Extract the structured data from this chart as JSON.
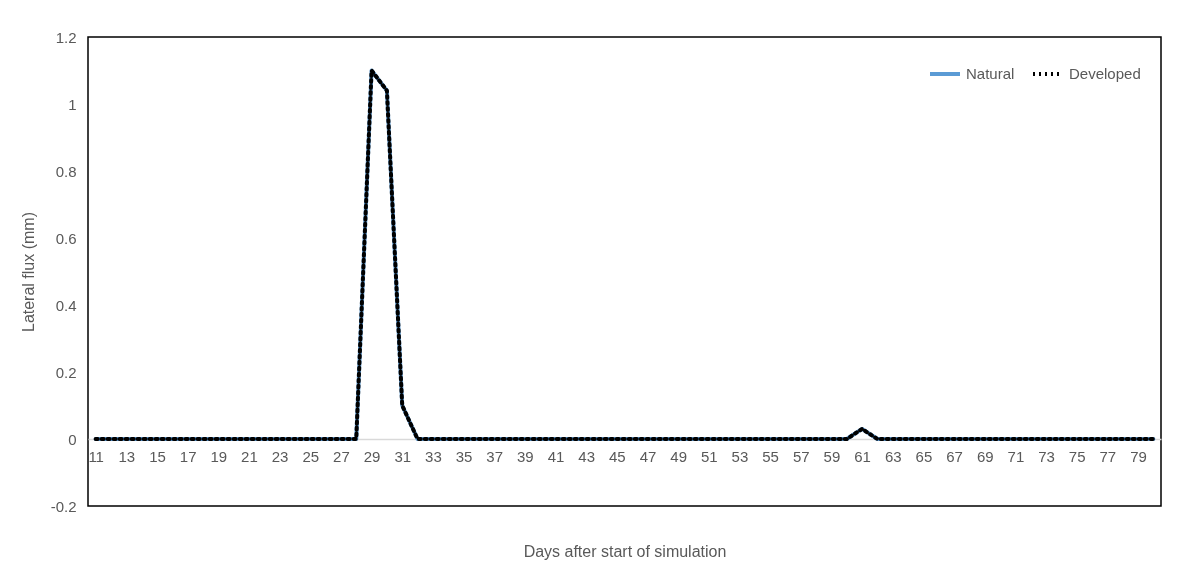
{
  "chart_data": {
    "type": "line",
    "xlabel": "Days after start of simulation",
    "ylabel": "Lateral flux (mm)",
    "categories": [
      "11",
      null,
      "13",
      null,
      "15",
      null,
      "17",
      null,
      "19",
      null,
      "21",
      null,
      "23",
      null,
      "25",
      null,
      "27",
      null,
      "29",
      null,
      "31",
      null,
      "33",
      null,
      "35",
      null,
      "37",
      null,
      "39",
      null,
      "41",
      null,
      "43",
      null,
      "45",
      null,
      "47",
      null,
      "49",
      null,
      "51",
      null,
      "53",
      null,
      "55",
      null,
      "57",
      null,
      "59",
      null,
      "61",
      null,
      "63",
      null,
      "65",
      null,
      "67",
      null,
      "69",
      null,
      "71",
      null,
      "73",
      null,
      "75",
      null,
      "77",
      null,
      "79",
      null
    ],
    "series": [
      {
        "name": "Natural",
        "color": "#5b9bd5",
        "line_style": "solid",
        "values": [
          0,
          0,
          0,
          0,
          0,
          0,
          0,
          0,
          0,
          0,
          0,
          0,
          0,
          0,
          0,
          0,
          0,
          0,
          1.1,
          1.04,
          0.1,
          0,
          0,
          0,
          0,
          0,
          0,
          0,
          0,
          0,
          0,
          0,
          0,
          0,
          0,
          0,
          0,
          0,
          0,
          0,
          0,
          0,
          0,
          0,
          0,
          0,
          0,
          0,
          0,
          0,
          0.03,
          0,
          0,
          0,
          0,
          0,
          0,
          0,
          0,
          0,
          0,
          0,
          0,
          0,
          0,
          0,
          0,
          0,
          0,
          0
        ]
      },
      {
        "name": "Developed",
        "color": "#000000",
        "line_style": "dotted",
        "values": [
          0,
          0,
          0,
          0,
          0,
          0,
          0,
          0,
          0,
          0,
          0,
          0,
          0,
          0,
          0,
          0,
          0,
          0,
          1.1,
          1.04,
          0.1,
          0,
          0,
          0,
          0,
          0,
          0,
          0,
          0,
          0,
          0,
          0,
          0,
          0,
          0,
          0,
          0,
          0,
          0,
          0,
          0,
          0,
          0,
          0,
          0,
          0,
          0,
          0,
          0,
          0,
          0.03,
          0,
          0,
          0,
          0,
          0,
          0,
          0,
          0,
          0,
          0,
          0,
          0,
          0,
          0,
          0,
          0,
          0,
          0,
          0
        ]
      }
    ],
    "ylim": [
      -0.2,
      1.2
    ],
    "yticks": [
      -0.2,
      0,
      0.2,
      0.4,
      0.6,
      0.8,
      1,
      1.2
    ],
    "grid": false,
    "legend": "top right"
  }
}
